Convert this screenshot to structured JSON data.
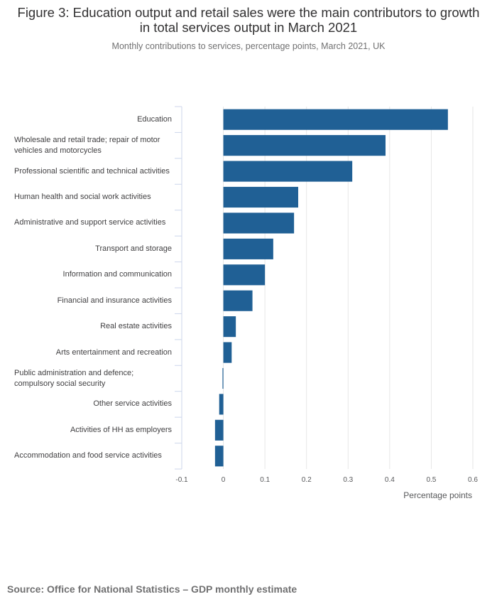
{
  "title": "Figure 3: Education output and retail sales were the main contributors to growth in total services output in March 2021",
  "subtitle": "Monthly contributions to services, percentage points, March 2021, UK",
  "source": "Source: Office for National Statistics – GDP monthly estimate",
  "chart_data": {
    "type": "bar",
    "orientation": "horizontal",
    "title": "Figure 3: Education output and retail sales were the main contributors to growth in total services output in March 2021",
    "subtitle": "Monthly contributions to services, percentage points, March 2021, UK",
    "xlabel": "Percentage points",
    "ylabel": "",
    "xlim": [
      -0.1,
      0.6
    ],
    "xticks": [
      -0.1,
      0,
      0.1,
      0.2,
      0.3,
      0.4,
      0.5,
      0.6
    ],
    "xtick_labels": [
      "-0.1",
      "0",
      "0.1",
      "0.2",
      "0.3",
      "0.4",
      "0.5",
      "0.6"
    ],
    "grid": true,
    "bar_color": "#206095",
    "grid_color": "#e6e6e6",
    "axis_color": "#ccd6eb",
    "categories": [
      "Education",
      "Wholesale and retail trade; repair of motor vehicles and motorcycles",
      "Professional scientific and technical activities",
      "Human health and social work activities",
      "Administrative and support service activities",
      "Transport and storage",
      "Information and communication",
      "Financial and insurance activities",
      "Real estate activities",
      "Arts entertainment and recreation",
      "Public administration and defence; compulsory social security",
      "Other service activities",
      "Activities of HH as employers",
      "Accommodation and food service activities"
    ],
    "values": [
      0.54,
      0.39,
      0.31,
      0.18,
      0.17,
      0.12,
      0.1,
      0.07,
      0.03,
      0.02,
      -0.002,
      -0.01,
      -0.02,
      -0.02
    ]
  }
}
